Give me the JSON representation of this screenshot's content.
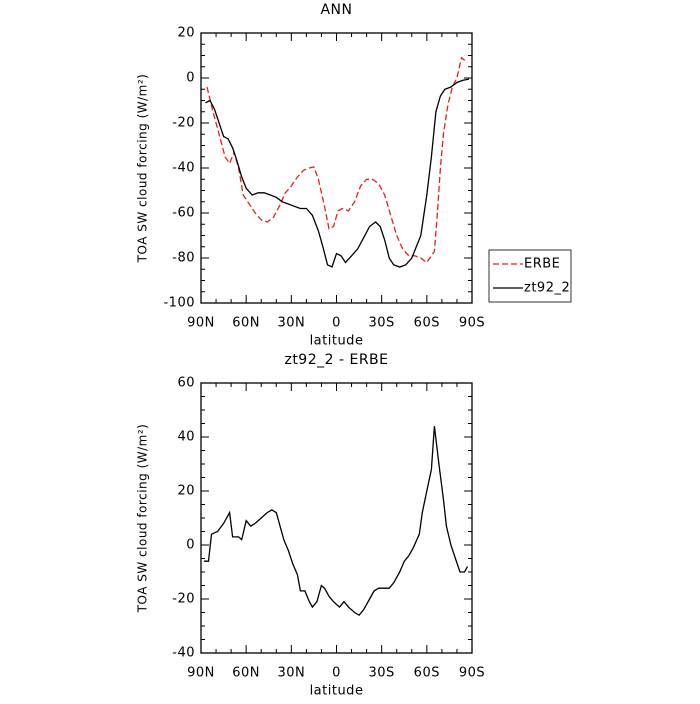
{
  "chart_data": [
    {
      "type": "line",
      "title": "ANN",
      "x_label": "latitude",
      "y_label": "TOA SW cloud forcing (W/m²)",
      "xlim": [
        90,
        -90
      ],
      "xticks": [
        {
          "value": 90,
          "label": "90N"
        },
        {
          "value": 60,
          "label": "60N"
        },
        {
          "value": 30,
          "label": "30N"
        },
        0,
        {
          "value": -30,
          "label": "30S"
        },
        {
          "value": -60,
          "label": "60S"
        },
        {
          "value": -90,
          "label": "90S"
        }
      ],
      "ylim": [
        -100,
        20
      ],
      "yticks": [
        -100,
        -80,
        -60,
        -40,
        -20,
        0,
        20
      ],
      "legend": "right",
      "series": [
        {
          "name": "ERBE",
          "color": "#e8201c",
          "line_style": "dashed",
          "x": [
            86,
            82,
            78,
            74,
            71,
            68,
            65,
            62,
            58,
            54,
            50,
            46,
            42,
            38,
            34,
            30,
            26,
            22,
            18,
            15,
            12,
            8,
            5,
            2,
            -1,
            -4,
            -8,
            -12,
            -16,
            -20,
            -24,
            -28,
            -32,
            -36,
            -40,
            -44,
            -48,
            -52,
            -56,
            -60,
            -63,
            -65,
            -67,
            -69,
            -71,
            -74,
            -77,
            -80,
            -83,
            -87
          ],
          "values": [
            -4,
            -15,
            -25,
            -35,
            -38,
            -33,
            -40,
            -52,
            -56,
            -60,
            -63,
            -64,
            -62,
            -57,
            -51,
            -48,
            -44,
            -41,
            -40,
            -39.5,
            -45,
            -57,
            -67,
            -66,
            -59,
            -58,
            -59,
            -55,
            -48,
            -45,
            -45,
            -47,
            -52,
            -61,
            -70,
            -76,
            -79,
            -79,
            -80,
            -82,
            -79,
            -77,
            -60,
            -40,
            -25,
            -12,
            -4,
            0,
            9,
            7
          ]
        },
        {
          "name": "zt92_2",
          "color": "#000000",
          "line_style": "solid",
          "x": [
            87,
            84,
            81,
            78,
            75,
            72,
            69,
            66,
            63,
            60,
            56,
            52,
            48,
            44,
            40,
            36,
            32,
            28,
            24,
            20,
            16,
            12,
            9,
            6,
            3,
            0,
            -3,
            -6,
            -10,
            -14,
            -18,
            -22,
            -26,
            -29,
            -32,
            -35,
            -38,
            -42,
            -46,
            -50,
            -53,
            -56,
            -60,
            -63,
            -66,
            -69,
            -72,
            -76,
            -80,
            -84,
            -88
          ],
          "values": [
            -11,
            -10,
            -14,
            -20,
            -26,
            -27,
            -31,
            -37,
            -44,
            -49,
            -52,
            -51,
            -51,
            -52,
            -53,
            -55,
            -56,
            -57,
            -58,
            -58,
            -61,
            -68,
            -75,
            -83,
            -84,
            -78,
            -79,
            -82,
            -79,
            -76,
            -71,
            -66,
            -64,
            -66,
            -72,
            -80,
            -83,
            -84,
            -83,
            -80,
            -75,
            -70,
            -52,
            -35,
            -15,
            -8,
            -5,
            -4,
            -2,
            -1,
            -0.5
          ]
        }
      ]
    },
    {
      "type": "line",
      "title": "zt92_2 - ERBE",
      "x_label": "latitude",
      "y_label": "TOA SW cloud forcing (W/m²)",
      "xlim": [
        90,
        -90
      ],
      "xticks": [
        {
          "value": 90,
          "label": "90N"
        },
        {
          "value": 60,
          "label": "60N"
        },
        {
          "value": 30,
          "label": "30N"
        },
        0,
        {
          "value": -30,
          "label": "30S"
        },
        {
          "value": -60,
          "label": "60S"
        },
        {
          "value": -90,
          "label": "90S"
        }
      ],
      "ylim": [
        -40,
        60
      ],
      "yticks": [
        -40,
        -20,
        0,
        20,
        40,
        60
      ],
      "series": [
        {
          "color": "#000000",
          "line_style": "solid",
          "x": [
            88,
            85,
            83,
            79,
            75,
            71,
            69,
            65,
            63,
            60,
            57,
            54,
            50,
            46,
            43,
            40,
            38,
            35,
            32,
            29,
            26,
            24,
            21,
            18,
            16,
            13,
            10,
            8,
            5,
            2,
            -2,
            -5,
            -8,
            -12,
            -15,
            -18,
            -22,
            -25,
            -28,
            -32,
            -35,
            -38,
            -42,
            -45,
            -48,
            -51,
            -55,
            -57,
            -60,
            -63,
            -65,
            -68,
            -71,
            -73,
            -76,
            -79,
            -82,
            -85,
            -87
          ],
          "values": [
            -6,
            -6,
            4,
            5,
            8,
            12,
            3,
            3,
            2,
            9,
            7,
            8,
            10,
            12,
            13,
            12,
            8,
            2,
            -2,
            -7,
            -11,
            -17,
            -17,
            -21,
            -23,
            -21,
            -15,
            -16,
            -19,
            -21,
            -23,
            -21,
            -23,
            -25,
            -26,
            -24,
            -20,
            -17,
            -16,
            -16,
            -16,
            -14,
            -10,
            -6,
            -4,
            -1,
            4,
            12,
            20,
            28,
            44,
            30,
            17,
            7,
            0,
            -5,
            -10,
            -10,
            -8
          ]
        }
      ]
    }
  ]
}
